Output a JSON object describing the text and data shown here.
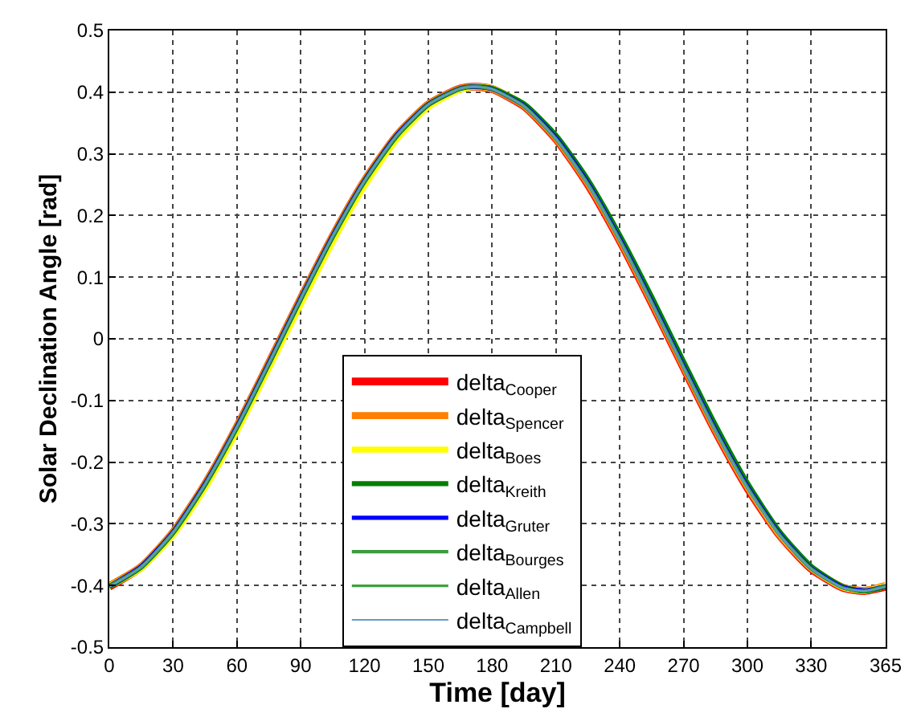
{
  "chart_data": {
    "type": "line",
    "xlabel": "Time [day]",
    "ylabel": "Solar Declination Angle [rad]",
    "x": [
      0,
      15,
      30,
      45,
      60,
      75,
      90,
      105,
      120,
      135,
      150,
      165,
      172,
      180,
      195,
      210,
      225,
      240,
      255,
      270,
      285,
      300,
      315,
      330,
      345,
      355,
      365
    ],
    "xlim": [
      0,
      365
    ],
    "xticks": [
      0,
      30,
      60,
      90,
      120,
      150,
      180,
      210,
      240,
      270,
      300,
      330,
      365
    ],
    "ylim": [
      -0.5,
      0.5
    ],
    "yticks": [
      -0.5,
      -0.4,
      -0.3,
      -0.2,
      -0.1,
      0,
      0.1,
      0.2,
      0.3,
      0.4,
      0.5
    ],
    "grid": true,
    "legend": "bottom",
    "marker": "none",
    "line_style": "solid",
    "series": [
      {
        "name": "delta$_{Cooper}$",
        "color": "#ff0000",
        "values": [
          -0.402,
          -0.37,
          -0.314,
          -0.236,
          -0.143,
          -0.04,
          0.065,
          0.166,
          0.256,
          0.329,
          0.38,
          0.406,
          0.409,
          0.405,
          0.377,
          0.324,
          0.25,
          0.159,
          0.058,
          -0.047,
          -0.15,
          -0.242,
          -0.318,
          -0.373,
          -0.404,
          -0.409,
          -0.402
        ]
      },
      {
        "name": "delta$_{Spencer}$",
        "color": "#ff8000",
        "values": [
          -0.4,
          -0.369,
          -0.313,
          -0.235,
          -0.142,
          -0.039,
          0.066,
          0.167,
          0.257,
          0.33,
          0.381,
          0.406,
          0.409,
          0.405,
          0.378,
          0.325,
          0.252,
          0.161,
          0.06,
          -0.045,
          -0.148,
          -0.24,
          -0.317,
          -0.372,
          -0.403,
          -0.408,
          -0.4
        ]
      },
      {
        "name": "delta$_{Boes}$",
        "color": "#ffff00",
        "values": [
          -0.401,
          -0.372,
          -0.318,
          -0.242,
          -0.15,
          -0.048,
          0.056,
          0.157,
          0.248,
          0.323,
          0.376,
          0.404,
          0.409,
          0.406,
          0.38,
          0.328,
          0.255,
          0.165,
          0.064,
          -0.041,
          -0.145,
          -0.238,
          -0.315,
          -0.371,
          -0.403,
          -0.409,
          -0.401
        ]
      },
      {
        "name": "delta$_{Kreith}$",
        "color": "#008000",
        "values": [
          -0.402,
          -0.37,
          -0.314,
          -0.236,
          -0.143,
          -0.04,
          0.065,
          0.166,
          0.256,
          0.329,
          0.38,
          0.406,
          0.409,
          0.406,
          0.381,
          0.33,
          0.258,
          0.168,
          0.068,
          -0.037,
          -0.14,
          -0.234,
          -0.312,
          -0.369,
          -0.402,
          -0.409,
          -0.402
        ]
      },
      {
        "name": "delta$_{Gruter}$",
        "color": "#0000ff",
        "values": [
          -0.401,
          -0.369,
          -0.313,
          -0.235,
          -0.142,
          -0.039,
          0.066,
          0.167,
          0.257,
          0.33,
          0.38,
          0.406,
          0.409,
          0.405,
          0.378,
          0.326,
          0.253,
          0.162,
          0.061,
          -0.044,
          -0.147,
          -0.239,
          -0.316,
          -0.372,
          -0.403,
          -0.408,
          -0.401
        ]
      },
      {
        "name": "delta$_{Bourges}$",
        "color": "#3c9c3c",
        "values": [
          -0.401,
          -0.37,
          -0.314,
          -0.236,
          -0.143,
          -0.04,
          0.065,
          0.166,
          0.256,
          0.329,
          0.38,
          0.406,
          0.409,
          0.405,
          0.377,
          0.324,
          0.251,
          0.16,
          0.059,
          -0.046,
          -0.149,
          -0.241,
          -0.317,
          -0.373,
          -0.404,
          -0.409,
          -0.401
        ]
      },
      {
        "name": "delta$_{Allen}$",
        "color": "#40a040",
        "values": [
          -0.402,
          -0.371,
          -0.315,
          -0.237,
          -0.144,
          -0.041,
          0.064,
          0.165,
          0.255,
          0.328,
          0.379,
          0.405,
          0.409,
          0.405,
          0.378,
          0.325,
          0.252,
          0.161,
          0.06,
          -0.045,
          -0.148,
          -0.24,
          -0.317,
          -0.372,
          -0.404,
          -0.409,
          -0.402
        ]
      },
      {
        "name": "delta$_{Campbell}$",
        "color": "#6699cc",
        "values": [
          -0.402,
          -0.37,
          -0.314,
          -0.236,
          -0.143,
          -0.04,
          0.065,
          0.166,
          0.256,
          0.329,
          0.38,
          0.406,
          0.409,
          0.405,
          0.377,
          0.324,
          0.25,
          0.159,
          0.058,
          -0.047,
          -0.15,
          -0.242,
          -0.318,
          -0.373,
          -0.404,
          -0.409,
          -0.402
        ]
      }
    ]
  }
}
